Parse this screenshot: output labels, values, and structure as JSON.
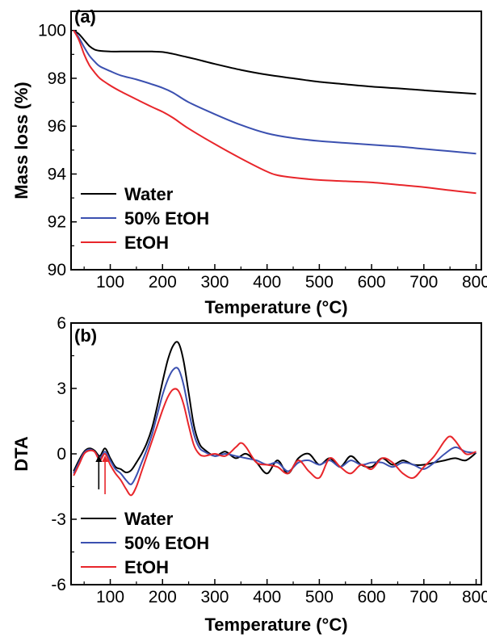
{
  "chart_data": [
    {
      "type": "line",
      "panel_label": "(a)",
      "xlabel": "Temperature (°C)",
      "ylabel": "Mass loss (%)",
      "xlim": [
        25,
        810
      ],
      "ylim": [
        90,
        100.8
      ],
      "xticks": [
        100,
        200,
        300,
        400,
        500,
        600,
        700,
        800
      ],
      "yticks": [
        90,
        92,
        94,
        96,
        98,
        100
      ],
      "legend_position": "bottom-left",
      "grid": false,
      "series": [
        {
          "name": "Water",
          "color": "#000000",
          "x": [
            30,
            40,
            50,
            60,
            70,
            80,
            100,
            120,
            150,
            180,
            200,
            220,
            240,
            260,
            300,
            350,
            400,
            450,
            500,
            550,
            600,
            650,
            700,
            750,
            800
          ],
          "y": [
            100.0,
            99.85,
            99.6,
            99.35,
            99.2,
            99.15,
            99.12,
            99.12,
            99.12,
            99.12,
            99.1,
            99.02,
            98.92,
            98.82,
            98.6,
            98.35,
            98.15,
            98.0,
            97.85,
            97.75,
            97.65,
            97.58,
            97.5,
            97.42,
            97.35
          ]
        },
        {
          "name": "50% EtOH",
          "color": "#3b50b0",
          "x": [
            30,
            40,
            50,
            60,
            70,
            80,
            100,
            120,
            150,
            180,
            200,
            220,
            250,
            300,
            350,
            400,
            450,
            500,
            550,
            600,
            650,
            700,
            750,
            800
          ],
          "y": [
            100.0,
            99.7,
            99.3,
            98.95,
            98.7,
            98.5,
            98.3,
            98.12,
            97.95,
            97.75,
            97.6,
            97.4,
            97.0,
            96.5,
            96.05,
            95.7,
            95.5,
            95.38,
            95.3,
            95.22,
            95.15,
            95.05,
            94.95,
            94.85
          ]
        },
        {
          "name": "EtOH",
          "color": "#e8262b",
          "x": [
            30,
            40,
            50,
            60,
            70,
            80,
            100,
            120,
            150,
            180,
            200,
            220,
            250,
            300,
            350,
            400,
            420,
            450,
            500,
            550,
            600,
            650,
            700,
            750,
            800
          ],
          "y": [
            100.0,
            99.6,
            99.0,
            98.55,
            98.25,
            98.0,
            97.7,
            97.45,
            97.12,
            96.8,
            96.6,
            96.35,
            95.9,
            95.25,
            94.65,
            94.1,
            93.95,
            93.85,
            93.75,
            93.7,
            93.65,
            93.55,
            93.45,
            93.32,
            93.2
          ]
        }
      ]
    },
    {
      "type": "line",
      "panel_label": "(b)",
      "xlabel": "Temperature (°C)",
      "ylabel": "DTA",
      "xlim": [
        25,
        810
      ],
      "ylim": [
        -6,
        6
      ],
      "xticks": [
        100,
        200,
        300,
        400,
        500,
        600,
        700,
        800
      ],
      "yticks": [
        -6,
        -3,
        0,
        3,
        6
      ],
      "legend_position": "bottom-left",
      "grid": false,
      "annotations": [
        {
          "type": "arrow",
          "x": 78,
          "color": "#000000"
        },
        {
          "type": "arrow",
          "x": 90,
          "color": "#e8262b"
        }
      ],
      "series": [
        {
          "name": "Water",
          "color": "#000000",
          "x": [
            30,
            40,
            50,
            60,
            70,
            80,
            90,
            100,
            110,
            120,
            130,
            140,
            150,
            160,
            170,
            180,
            190,
            200,
            210,
            220,
            230,
            240,
            250,
            260,
            270,
            280,
            300,
            320,
            340,
            360,
            380,
            400,
            420,
            440,
            460,
            480,
            500,
            520,
            540,
            560,
            580,
            600,
            620,
            640,
            660,
            680,
            700,
            720,
            740,
            760,
            780,
            800
          ],
          "y": [
            -0.8,
            -0.3,
            0.1,
            0.25,
            0.15,
            -0.1,
            0.25,
            -0.2,
            -0.6,
            -0.7,
            -0.85,
            -0.75,
            -0.4,
            0.0,
            0.5,
            1.2,
            2.2,
            3.3,
            4.3,
            4.95,
            5.1,
            4.3,
            2.8,
            1.3,
            0.5,
            0.2,
            -0.1,
            0.1,
            -0.2,
            0.0,
            -0.4,
            -0.9,
            -0.3,
            -0.9,
            -0.2,
            0.0,
            -0.5,
            -0.2,
            -0.6,
            -0.1,
            -0.5,
            -0.6,
            -0.2,
            -0.5,
            -0.3,
            -0.5,
            -0.5,
            -0.4,
            -0.3,
            -0.2,
            -0.3,
            0.05
          ]
        },
        {
          "name": "50% EtOH",
          "color": "#3b50b0",
          "x": [
            30,
            40,
            50,
            60,
            70,
            80,
            90,
            100,
            110,
            120,
            130,
            140,
            150,
            160,
            170,
            180,
            190,
            200,
            210,
            220,
            230,
            240,
            250,
            260,
            270,
            280,
            300,
            320,
            340,
            360,
            380,
            400,
            420,
            440,
            460,
            480,
            500,
            520,
            540,
            560,
            580,
            600,
            620,
            640,
            660,
            680,
            700,
            720,
            740,
            760,
            780,
            800
          ],
          "y": [
            -0.9,
            -0.4,
            0.05,
            0.2,
            0.1,
            -0.2,
            0.1,
            -0.3,
            -0.7,
            -0.9,
            -1.2,
            -1.4,
            -1.0,
            -0.4,
            0.2,
            0.9,
            1.8,
            2.7,
            3.4,
            3.85,
            3.9,
            3.2,
            2.0,
            0.9,
            0.3,
            0.1,
            -0.1,
            0.0,
            -0.1,
            -0.2,
            -0.3,
            -0.5,
            -0.4,
            -0.8,
            -0.4,
            -0.3,
            -0.5,
            -0.3,
            -0.6,
            -0.3,
            -0.5,
            -0.4,
            -0.4,
            -0.6,
            -0.4,
            -0.5,
            -0.7,
            -0.4,
            0.0,
            0.3,
            0.1,
            0.05
          ]
        },
        {
          "name": "EtOH",
          "color": "#e8262b",
          "x": [
            30,
            40,
            50,
            60,
            70,
            80,
            90,
            100,
            110,
            120,
            130,
            140,
            150,
            160,
            170,
            180,
            190,
            200,
            210,
            220,
            230,
            240,
            250,
            260,
            270,
            280,
            300,
            320,
            340,
            350,
            360,
            380,
            400,
            420,
            440,
            460,
            480,
            500,
            520,
            540,
            560,
            580,
            600,
            620,
            640,
            660,
            680,
            700,
            720,
            740,
            750,
            760,
            780,
            800
          ],
          "y": [
            -1.0,
            -0.5,
            0.0,
            0.15,
            0.1,
            -0.3,
            0.0,
            -0.5,
            -0.9,
            -1.2,
            -1.6,
            -1.9,
            -1.5,
            -0.8,
            -0.1,
            0.6,
            1.3,
            2.0,
            2.6,
            2.95,
            2.9,
            2.3,
            1.3,
            0.4,
            0.0,
            -0.1,
            0.0,
            -0.1,
            0.3,
            0.5,
            0.3,
            -0.4,
            -0.5,
            -0.6,
            -0.9,
            -0.3,
            -0.8,
            -1.1,
            -0.2,
            -0.6,
            -0.9,
            -0.5,
            -0.7,
            -0.2,
            -0.4,
            -0.9,
            -1.1,
            -0.6,
            -0.1,
            0.6,
            0.8,
            0.6,
            0.0,
            0.1
          ]
        }
      ]
    }
  ]
}
